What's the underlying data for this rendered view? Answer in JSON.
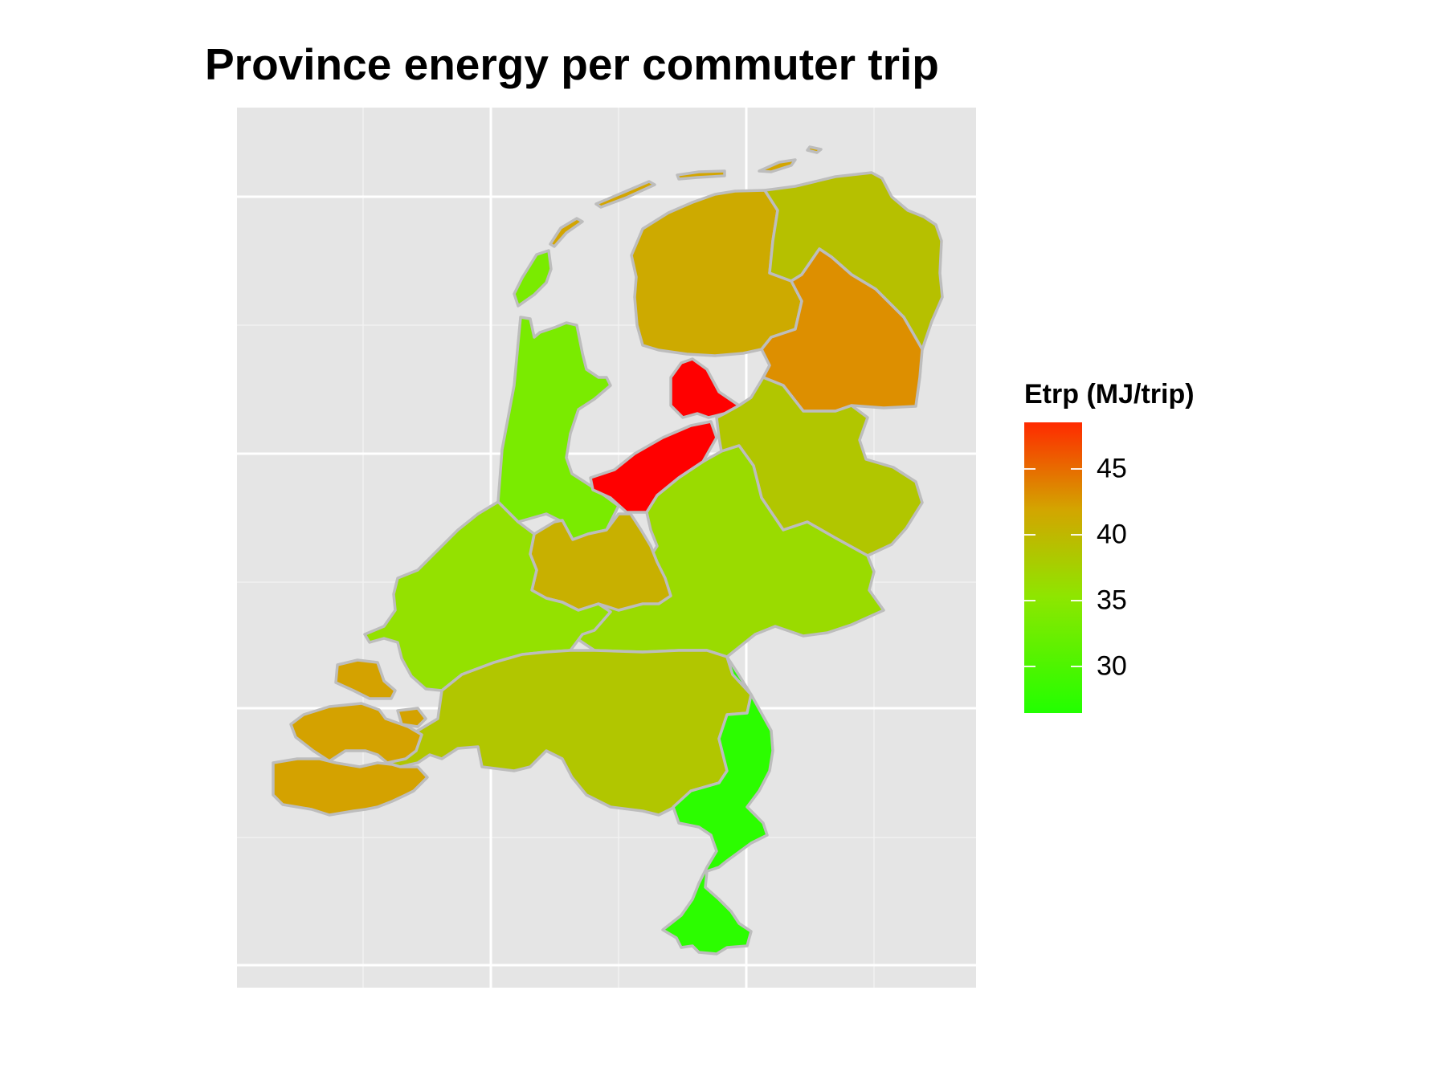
{
  "title": "Province energy per commuter trip",
  "legend": {
    "title": "Etrp (MJ/trip)",
    "min": 26.5,
    "max": 48.5,
    "ticks": [
      {
        "value": 45,
        "label": "45"
      },
      {
        "value": 40,
        "label": "40"
      },
      {
        "value": 35,
        "label": "35"
      },
      {
        "value": 30,
        "label": "30"
      }
    ]
  },
  "regions": [
    {
      "name": "Groningen",
      "value": 35.5
    },
    {
      "name": "Friesland",
      "value": 37.5
    },
    {
      "name": "Drenthe",
      "value": 41.5
    },
    {
      "name": "Noord-Holland",
      "value": 31.0
    },
    {
      "name": "Flevoland",
      "value": 48.5
    },
    {
      "name": "Overijssel",
      "value": 35.0
    },
    {
      "name": "Gelderland",
      "value": 33.0
    },
    {
      "name": "Utrecht",
      "value": 37.0
    },
    {
      "name": "Zuid-Holland",
      "value": 32.5
    },
    {
      "name": "Noord-Brabant",
      "value": 35.0
    },
    {
      "name": "Zeeland",
      "value": 38.5
    },
    {
      "name": "Limburg",
      "value": 27.0
    },
    {
      "name": "Wadden Islands",
      "value": 38.0
    },
    {
      "name": "Texel",
      "value": 31.0
    }
  ],
  "colors": {
    "panel": "#e5e5e5",
    "grid_major": "#ffffff",
    "border": "#bdbdbd"
  }
}
